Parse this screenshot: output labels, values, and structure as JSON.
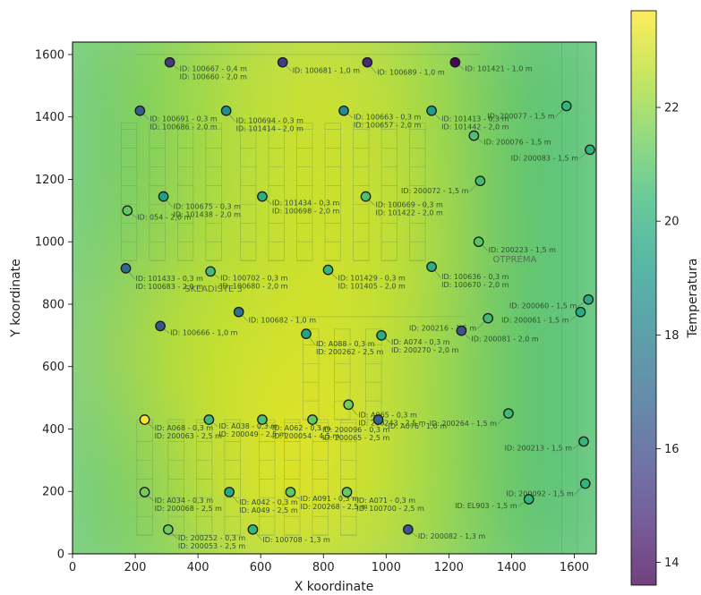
{
  "chart_data": {
    "type": "scatter",
    "xlabel": "X koordinate",
    "ylabel": "Y koordinate",
    "xlim": [
      0,
      1670
    ],
    "ylim": [
      0,
      1640
    ],
    "xticks": [
      0,
      200,
      400,
      600,
      800,
      1000,
      1200,
      1400,
      1600
    ],
    "yticks": [
      0,
      200,
      400,
      600,
      800,
      1000,
      1200,
      1400,
      1600
    ],
    "colorbar": {
      "label": "Temperatura",
      "range": [
        13.6,
        23.7
      ],
      "ticks": [
        14,
        16,
        18,
        20,
        22
      ],
      "colormap": "viridis"
    },
    "background": "temperature heatmap over floor plan",
    "room_labels": [
      "SKLADIŠTE 3",
      "OTPREMA"
    ],
    "points": [
      {
        "x": 310,
        "y": 1575,
        "temp": 15.3,
        "label": "ID: 100667 - 0,4 m\nID: 100660 - 2,0 m"
      },
      {
        "x": 670,
        "y": 1575,
        "temp": 15.5,
        "label": "ID: 100681 - 1,0 m"
      },
      {
        "x": 940,
        "y": 1575,
        "temp": 14.8,
        "label": "ID: 100689 - 1,0 m"
      },
      {
        "x": 1220,
        "y": 1575,
        "temp": 13.8,
        "label": "ID: 101421 - 1,0 m"
      },
      {
        "x": 215,
        "y": 1420,
        "temp": 16.5,
        "label": "ID: 100691 - 0,3 m\nID: 100686 - 2,0 m"
      },
      {
        "x": 490,
        "y": 1420,
        "temp": 18.6,
        "label": "ID: 100694 - 0,3 m\nID: 101414 - 2,0 m"
      },
      {
        "x": 865,
        "y": 1420,
        "temp": 18.5,
        "label": "ID: 100663 - 0,3 m\nID: 100657 - 2,0 m"
      },
      {
        "x": 1145,
        "y": 1420,
        "temp": 19.2,
        "label": "ID: 101413 - 0,3 m\nID: 101442 - 2,0 m"
      },
      {
        "x": 1575,
        "y": 1435,
        "temp": 20.2,
        "label": "ID: 200077 - 1,5 m"
      },
      {
        "x": 1280,
        "y": 1340,
        "temp": 20.8,
        "label": "ID: 200076 - 1,5 m"
      },
      {
        "x": 1650,
        "y": 1295,
        "temp": 20.1,
        "label": "ID: 200083 - 1,5 m"
      },
      {
        "x": 290,
        "y": 1145,
        "temp": 19.3,
        "label": "ID: 100675 - 0,3 m\nID: 101438 - 2,0 m"
      },
      {
        "x": 605,
        "y": 1145,
        "temp": 20.0,
        "label": "ID: 101434 - 0,3 m\nID: 100698 - 2,0 m"
      },
      {
        "x": 935,
        "y": 1145,
        "temp": 20.8,
        "label": "ID: 100669 - 0,3 m\nID: 101422 - 2,0 m"
      },
      {
        "x": 1300,
        "y": 1195,
        "temp": 20.6,
        "label": "ID: 200072 - 1,5 m"
      },
      {
        "x": 175,
        "y": 1100,
        "temp": 21.2,
        "label": "ID: 054 - 2,0 m"
      },
      {
        "x": 1295,
        "y": 1000,
        "temp": 21.0,
        "label": "ID: 200223 - 1,5 m"
      },
      {
        "x": 170,
        "y": 915,
        "temp": 17.0,
        "label": "ID: 101433 - 0,3 m\nID: 100683 - 2,0 m"
      },
      {
        "x": 440,
        "y": 905,
        "temp": 20.6,
        "label": "ID: 100702 - 0,3 m\nID: 100680 - 2,0 m"
      },
      {
        "x": 815,
        "y": 910,
        "temp": 20.3,
        "label": "ID: 101429 - 0,3 m\nID: 101405 - 2,0 m"
      },
      {
        "x": 1145,
        "y": 920,
        "temp": 19.9,
        "label": "ID: 100636 - 0,3 m\nID: 100670 - 2,0 m"
      },
      {
        "x": 1645,
        "y": 815,
        "temp": 19.9,
        "label": "ID: 200060 - 1,5 m"
      },
      {
        "x": 1620,
        "y": 775,
        "temp": 19.8,
        "label": "ID: 200061 - 1,5 m"
      },
      {
        "x": 1325,
        "y": 755,
        "temp": 20.5,
        "label": "ID: 200216 - 1,5 m"
      },
      {
        "x": 280,
        "y": 730,
        "temp": 16.4,
        "label": "ID: 100666 - 1,0 m"
      },
      {
        "x": 530,
        "y": 775,
        "temp": 17.3,
        "label": "ID: 100682 - 1,0 m"
      },
      {
        "x": 745,
        "y": 705,
        "temp": 19.5,
        "label": "ID: A088 - 0,3 m\nID: 200262 - 2,5 m"
      },
      {
        "x": 985,
        "y": 700,
        "temp": 19.8,
        "label": "ID: A074 - 0,3 m\nID: 200270 - 2,0 m"
      },
      {
        "x": 1240,
        "y": 715,
        "temp": 16.2,
        "label": "ID: 200081 - 2,0 m"
      },
      {
        "x": 880,
        "y": 478,
        "temp": 21.5,
        "label": "ID: A065 - 0,3 m\nID: 200243 - 2,5 m"
      },
      {
        "x": 435,
        "y": 430,
        "temp": 20.5,
        "label": "ID: A038 - 0,3 m\nID: 200049 - 2,5 m"
      },
      {
        "x": 605,
        "y": 430,
        "temp": 20.8,
        "label": "ID: A062 - 0,3 m\nID: 200054 - 4,5 m"
      },
      {
        "x": 765,
        "y": 430,
        "temp": 21.2,
        "label": "ID: 200096 - 0,3 m\nID: 200065 - 2,5 m"
      },
      {
        "x": 975,
        "y": 430,
        "temp": 16.8,
        "label": "ID: A076 - 1,0 m"
      },
      {
        "x": 230,
        "y": 430,
        "temp": 23.6,
        "label": "ID: A068 - 0,3 m\nID: 200063 - 2,5 m"
      },
      {
        "x": 1390,
        "y": 450,
        "temp": 20.5,
        "label": "ID: 200264 - 1,5 m"
      },
      {
        "x": 1630,
        "y": 360,
        "temp": 20.3,
        "label": "ID: 200213 - 1,5 m"
      },
      {
        "x": 230,
        "y": 198,
        "temp": 21.5,
        "label": "ID: A034 - 0,3 m\nID: 200068 - 2,5 m"
      },
      {
        "x": 500,
        "y": 198,
        "temp": 19.6,
        "label": "ID: A042 - 0,3 m\nID: A049 - 2,5 m"
      },
      {
        "x": 695,
        "y": 198,
        "temp": 21.2,
        "label": "ID: A091 - 0,3 m\nID: 200268 - 2,5 m"
      },
      {
        "x": 875,
        "y": 198,
        "temp": 21.3,
        "label": "ID: A071 - 0,3 m\nID: 100700 - 2,5 m"
      },
      {
        "x": 1635,
        "y": 225,
        "temp": 20.3,
        "label": "ID: 200092 - 1,5 m"
      },
      {
        "x": 1455,
        "y": 175,
        "temp": 20.3,
        "label": "ID: EL903 - 1,5 m"
      },
      {
        "x": 305,
        "y": 78,
        "temp": 21.4,
        "label": "ID: 200252 - 0,3 m\nID: 200053 - 2,5 m"
      },
      {
        "x": 575,
        "y": 78,
        "temp": 20.3,
        "label": "ID: 100708 - 1,3 m"
      },
      {
        "x": 1070,
        "y": 78,
        "temp": 16.3,
        "label": "ID: 200082 - 1,3 m"
      }
    ]
  },
  "colors": {
    "viridis": [
      "#440154",
      "#482878",
      "#3e4989",
      "#31688e",
      "#26828e",
      "#1f9e89",
      "#35b779",
      "#6ece58",
      "#b5de2b",
      "#fde725"
    ]
  }
}
